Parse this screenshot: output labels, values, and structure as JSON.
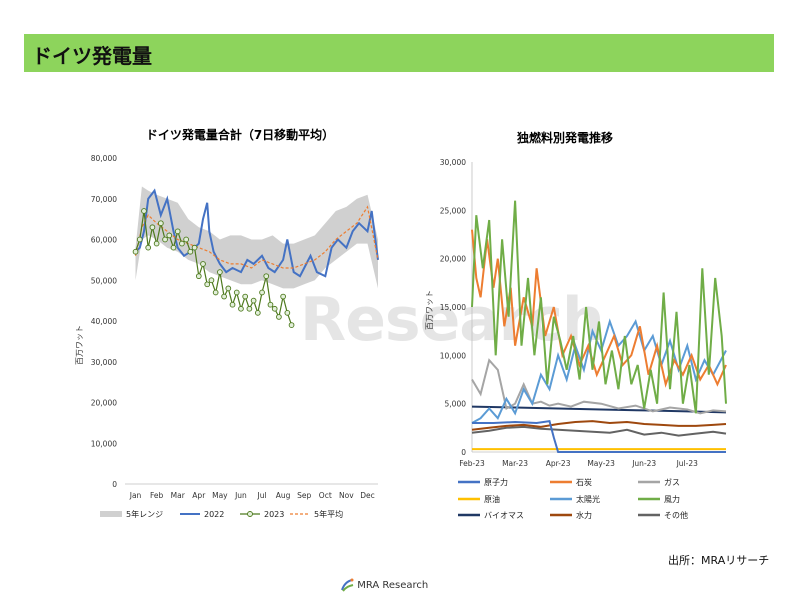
{
  "header": {
    "title": "ドイツ発電量"
  },
  "watermark": "Research",
  "source": "出所：MRAリサーチ",
  "footer": {
    "brand": "MRA Research"
  },
  "colors": {
    "header_bg": "#8dd45c",
    "range": "#d0d0d0",
    "y2022": "#4472c4",
    "y2023": "#4e7a1e",
    "y2023_fill": "#e2efda",
    "avg": "#ed7d31",
    "nuclear": "#4472c4",
    "coal": "#ed7d31",
    "gas": "#a5a5a5",
    "oil": "#ffc000",
    "solar": "#5b9bd5",
    "wind": "#70ad47",
    "biomass": "#203864",
    "hydro": "#9e480e",
    "other": "#636363"
  },
  "chart_data": [
    {
      "type": "line",
      "title": "ドイツ発電量合計（7日移動平均）",
      "ylabel": "百万ワット",
      "ylim": [
        0,
        80000
      ],
      "yticks": [
        "0",
        "10,000",
        "20,000",
        "30,000",
        "40,000",
        "50,000",
        "60,000",
        "70,000",
        "80,000"
      ],
      "categories": [
        "Jan",
        "Feb",
        "Mar",
        "Apr",
        "May",
        "Jun",
        "Jul",
        "Aug",
        "Sep",
        "Oct",
        "Nov",
        "Dec"
      ],
      "series": [
        {
          "name": "5年レンジ",
          "kind": "range",
          "x": [
            0,
            0.3,
            0.6,
            1.0,
            1.5,
            2.0,
            2.5,
            3.0,
            3.5,
            4.0,
            4.5,
            5.0,
            5.5,
            6.0,
            6.5,
            7.0,
            7.5,
            8.0,
            8.5,
            9.0,
            9.5,
            10.0,
            10.5,
            11.0,
            11.5
          ],
          "low": [
            50000,
            60000,
            61000,
            60000,
            58000,
            57000,
            55000,
            54000,
            52000,
            51000,
            50000,
            49000,
            49000,
            50000,
            49000,
            48000,
            48000,
            49000,
            50000,
            53000,
            55000,
            57000,
            59000,
            59000,
            48000
          ],
          "high": [
            58000,
            73000,
            72000,
            71000,
            70000,
            69000,
            65000,
            63000,
            62000,
            60000,
            61000,
            61000,
            60000,
            60000,
            61000,
            59000,
            59000,
            60000,
            61000,
            64000,
            67000,
            68000,
            70000,
            71000,
            60000
          ]
        },
        {
          "name": "2022",
          "x": [
            0,
            0.2,
            0.4,
            0.6,
            0.9,
            1.2,
            1.5,
            1.8,
            2.0,
            2.3,
            2.6,
            3.0,
            3.2,
            3.4,
            3.5,
            3.7,
            4.0,
            4.3,
            4.6,
            5.0,
            5.3,
            5.6,
            6.0,
            6.3,
            6.6,
            7.0,
            7.2,
            7.5,
            7.8,
            8.0,
            8.3,
            8.6,
            9.0,
            9.3,
            9.6,
            10.0,
            10.3,
            10.6,
            11.0,
            11.2,
            11.5
          ],
          "y": [
            57000,
            58000,
            62000,
            70000,
            72000,
            66000,
            70000,
            62000,
            58000,
            56000,
            57000,
            59000,
            65000,
            69000,
            62000,
            57000,
            54000,
            52000,
            53000,
            52000,
            55000,
            54000,
            56000,
            53000,
            52000,
            55000,
            60000,
            52000,
            51000,
            53000,
            56000,
            52000,
            51000,
            58000,
            60000,
            58000,
            62000,
            64000,
            62000,
            67000,
            55000
          ]
        },
        {
          "name": "2023",
          "x": [
            0,
            0.2,
            0.4,
            0.6,
            0.8,
            1.0,
            1.2,
            1.4,
            1.6,
            1.8,
            2.0,
            2.2,
            2.4,
            2.6,
            2.8,
            3.0,
            3.2,
            3.4,
            3.6,
            3.8,
            4.0,
            4.2,
            4.4,
            4.6,
            4.8,
            5.0,
            5.2,
            5.4,
            5.6,
            5.8,
            6.0,
            6.2,
            6.4,
            6.6,
            6.8,
            7.0,
            7.2,
            7.4
          ],
          "y": [
            57000,
            60000,
            67000,
            58000,
            63000,
            59000,
            64000,
            60000,
            61000,
            58000,
            62000,
            59000,
            60000,
            57000,
            58000,
            51000,
            54000,
            49000,
            50000,
            47000,
            52000,
            46000,
            48000,
            44000,
            47000,
            43000,
            46000,
            43000,
            45000,
            42000,
            47000,
            51000,
            44000,
            43000,
            41000,
            46000,
            42000,
            39000
          ]
        },
        {
          "name": "5年平均",
          "x": [
            0,
            0.3,
            0.6,
            1.0,
            1.5,
            2.0,
            2.5,
            3.0,
            3.5,
            4.0,
            4.5,
            5.0,
            5.5,
            6.0,
            6.5,
            7.0,
            7.5,
            8.0,
            8.5,
            9.0,
            9.5,
            10.0,
            10.5,
            11.0,
            11.5
          ],
          "y": [
            56000,
            63000,
            66000,
            64000,
            62000,
            60000,
            59000,
            58000,
            57000,
            55000,
            54000,
            54000,
            53000,
            55000,
            54000,
            53000,
            53000,
            54000,
            55000,
            57000,
            60000,
            62000,
            64000,
            68000,
            55000
          ]
        }
      ]
    },
    {
      "type": "line",
      "title": "独燃料別発電推移",
      "ylabel": "百万ワット",
      "ylim": [
        0,
        30000
      ],
      "yticks": [
        "0",
        "5,000",
        "10,000",
        "15,000",
        "20,000",
        "25,000",
        "30,000"
      ],
      "categories": [
        "Feb-23",
        "Mar-23",
        "Apr-23",
        "May-23",
        "Jun-23",
        "Jul-23"
      ],
      "series": [
        {
          "name": "原子力",
          "x": [
            0,
            0.5,
            1.0,
            1.5,
            1.8,
            1.9,
            2.0,
            2.5,
            3.0,
            4.0,
            5.0,
            5.9
          ],
          "y": [
            3000,
            3000,
            3100,
            3000,
            3200,
            1500,
            0,
            0,
            0,
            0,
            0,
            0
          ]
        },
        {
          "name": "石炭",
          "x": [
            0,
            0.1,
            0.2,
            0.35,
            0.5,
            0.6,
            0.75,
            0.9,
            1.0,
            1.2,
            1.4,
            1.5,
            1.7,
            1.9,
            2.1,
            2.3,
            2.5,
            2.7,
            2.9,
            3.1,
            3.3,
            3.5,
            3.7,
            3.9,
            4.1,
            4.3,
            4.5,
            4.7,
            4.9,
            5.1,
            5.3,
            5.5,
            5.7,
            5.9
          ],
          "y": [
            23000,
            18000,
            16000,
            22000,
            17000,
            20000,
            13000,
            17000,
            11000,
            16000,
            13000,
            19000,
            12000,
            15000,
            10000,
            12000,
            9000,
            11000,
            8000,
            10000,
            12000,
            9000,
            10000,
            13000,
            8000,
            11000,
            7000,
            9500,
            8000,
            10000,
            7500,
            9000,
            7000,
            9000
          ]
        },
        {
          "name": "ガス",
          "x": [
            0,
            0.2,
            0.4,
            0.6,
            0.8,
            1.0,
            1.2,
            1.4,
            1.6,
            1.8,
            2.0,
            2.3,
            2.6,
            3.0,
            3.4,
            3.8,
            4.2,
            4.6,
            5.0,
            5.3,
            5.6,
            5.9
          ],
          "y": [
            7500,
            6000,
            9500,
            8500,
            4500,
            5000,
            7000,
            5000,
            5200,
            4800,
            5000,
            4700,
            5200,
            5000,
            4500,
            4800,
            4200,
            4600,
            4400,
            4000,
            4300,
            4200
          ]
        },
        {
          "name": "原油",
          "x": [
            0,
            1,
            2,
            3,
            4,
            5,
            5.9
          ],
          "y": [
            300,
            300,
            300,
            300,
            300,
            300,
            300
          ]
        },
        {
          "name": "太陽光",
          "x": [
            0,
            0.2,
            0.4,
            0.6,
            0.8,
            1.0,
            1.2,
            1.4,
            1.6,
            1.8,
            2.0,
            2.2,
            2.4,
            2.6,
            2.8,
            3.0,
            3.2,
            3.4,
            3.6,
            3.8,
            4.0,
            4.2,
            4.4,
            4.6,
            4.8,
            5.0,
            5.2,
            5.4,
            5.6,
            5.9
          ],
          "y": [
            3000,
            3500,
            4500,
            3500,
            5500,
            4000,
            6500,
            5000,
            8000,
            6500,
            10000,
            7500,
            11000,
            8500,
            12500,
            10500,
            13500,
            11000,
            12000,
            13500,
            10500,
            12000,
            9000,
            11500,
            8500,
            11000,
            7500,
            9500,
            8000,
            10500
          ]
        },
        {
          "name": "風力",
          "x": [
            0,
            0.1,
            0.25,
            0.4,
            0.55,
            0.7,
            0.85,
            1.0,
            1.15,
            1.3,
            1.45,
            1.6,
            1.75,
            1.9,
            2.05,
            2.2,
            2.35,
            2.5,
            2.65,
            2.8,
            2.95,
            3.1,
            3.25,
            3.4,
            3.55,
            3.7,
            3.85,
            4.0,
            4.15,
            4.3,
            4.45,
            4.6,
            4.75,
            4.9,
            5.05,
            5.2,
            5.35,
            5.5,
            5.65,
            5.8,
            5.9
          ],
          "y": [
            15000,
            24500,
            19000,
            24000,
            10000,
            22000,
            14000,
            26000,
            11000,
            18000,
            10000,
            16000,
            7000,
            14000,
            11500,
            8500,
            12000,
            7500,
            15000,
            8500,
            13500,
            7000,
            10500,
            6500,
            12000,
            7000,
            9000,
            4500,
            8500,
            5000,
            16500,
            6500,
            14500,
            5000,
            9000,
            4000,
            19000,
            8000,
            18000,
            12000,
            5000
          ]
        },
        {
          "name": "バイオマス",
          "x": [
            0,
            1,
            2,
            3,
            4,
            5,
            5.9
          ],
          "y": [
            4700,
            4600,
            4500,
            4400,
            4300,
            4200,
            4100
          ]
        },
        {
          "name": "水力",
          "x": [
            0,
            0.4,
            0.8,
            1.2,
            1.6,
            2.0,
            2.4,
            2.8,
            3.2,
            3.6,
            4.0,
            4.4,
            4.8,
            5.2,
            5.6,
            5.9
          ],
          "y": [
            2300,
            2500,
            2700,
            2800,
            2600,
            2900,
            3100,
            3200,
            3000,
            3100,
            2900,
            2800,
            2700,
            2700,
            2800,
            2900
          ]
        },
        {
          "name": "その他",
          "x": [
            0,
            0.4,
            0.8,
            1.2,
            1.6,
            2.0,
            2.4,
            2.8,
            3.2,
            3.6,
            4.0,
            4.4,
            4.8,
            5.2,
            5.6,
            5.9
          ],
          "y": [
            2000,
            2200,
            2500,
            2600,
            2400,
            2300,
            2200,
            2100,
            2000,
            2300,
            1800,
            2000,
            1700,
            1900,
            2100,
            1900
          ]
        }
      ]
    }
  ]
}
